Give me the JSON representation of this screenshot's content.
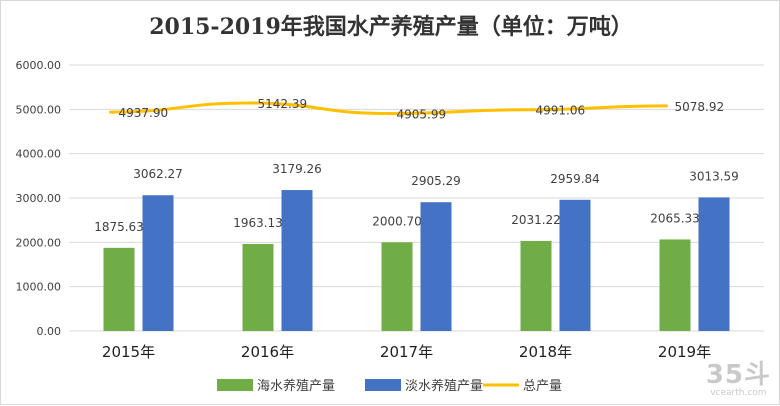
{
  "chart_data": {
    "type": "bar",
    "title": "2015-2019年我国水产养殖产量（单位：万吨）",
    "categories": [
      "2015年",
      "2016年",
      "2017年",
      "2018年",
      "2019年"
    ],
    "series": [
      {
        "name": "海水养殖产量",
        "kind": "bar",
        "color": "#70ad47",
        "values": [
          1875.63,
          1963.13,
          2000.7,
          2031.22,
          2065.33
        ]
      },
      {
        "name": "淡水养殖产量",
        "kind": "bar",
        "color": "#4472c4",
        "values": [
          3062.27,
          3179.26,
          2905.29,
          2959.84,
          3013.59
        ]
      },
      {
        "name": "总产量",
        "kind": "line",
        "color": "#ffc000",
        "values": [
          4937.9,
          5142.39,
          4905.99,
          4991.06,
          5078.92
        ]
      }
    ],
    "yticks": [
      "0.00",
      "1000.00",
      "2000.00",
      "3000.00",
      "4000.00",
      "5000.00",
      "6000.00"
    ],
    "ylim": [
      0,
      6000
    ],
    "grid": true,
    "legend": "bottom"
  },
  "watermark": {
    "logo": "35斗",
    "url": "vcearth.com"
  }
}
